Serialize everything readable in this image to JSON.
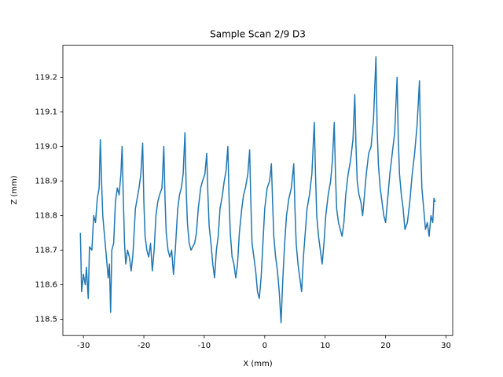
{
  "chart_data": {
    "type": "line",
    "title": "Sample Scan 2/9 D3",
    "x_label": "X (mm)",
    "y_label": "Z (mm)",
    "xlim": [
      -33.4,
      31.1
    ],
    "ylim": [
      118.453,
      119.293
    ],
    "xticks": [
      -30,
      -20,
      -10,
      0,
      10,
      20,
      30
    ],
    "yticks": [
      118.5,
      118.6,
      118.7,
      118.8,
      118.9,
      {
        "value": 119,
        "label": "119.0"
      },
      119.1,
      119.2
    ],
    "grid": false,
    "series": [
      {
        "color": "#1f77b4",
        "x": [
          -30.5,
          -30.3,
          -30.0,
          -29.7,
          -29.5,
          -29.2,
          -29.0,
          -28.6,
          -28.3,
          -28.0,
          -27.7,
          -27.4,
          -27.2,
          -27.0,
          -26.8,
          -26.6,
          -26.4,
          -26.2,
          -25.9,
          -25.7,
          -25.5,
          -25.3,
          -25.0,
          -24.7,
          -24.4,
          -24.1,
          -23.8,
          -23.6,
          -23.4,
          -23.2,
          -23.0,
          -22.7,
          -22.4,
          -22.1,
          -21.8,
          -21.4,
          -21.1,
          -20.8,
          -20.5,
          -20.2,
          -20.0,
          -19.8,
          -19.5,
          -19.2,
          -18.9,
          -18.6,
          -18.3,
          -18.0,
          -17.7,
          -17.4,
          -17.0,
          -16.7,
          -16.5,
          -16.3,
          -16.0,
          -15.7,
          -15.4,
          -15.1,
          -14.8,
          -14.4,
          -14.1,
          -13.8,
          -13.5,
          -13.2,
          -13.0,
          -12.8,
          -12.5,
          -12.2,
          -11.9,
          -11.6,
          -11.3,
          -11.0,
          -10.6,
          -10.3,
          -9.9,
          -9.6,
          -9.4,
          -9.2,
          -8.9,
          -8.6,
          -8.3,
          -8.0,
          -7.7,
          -7.4,
          -7.0,
          -6.7,
          -6.4,
          -6.1,
          -5.9,
          -5.7,
          -5.4,
          -5.1,
          -4.8,
          -4.5,
          -4.2,
          -3.8,
          -3.5,
          -3.2,
          -2.8,
          -2.5,
          -2.3,
          -2.1,
          -1.8,
          -1.5,
          -1.2,
          -0.9,
          -0.6,
          -0.3,
          0.0,
          0.4,
          0.8,
          1.1,
          1.3,
          1.5,
          1.8,
          2.1,
          2.4,
          2.7,
          3.0,
          3.3,
          3.6,
          4.0,
          4.4,
          4.8,
          5.0,
          5.2,
          5.5,
          5.8,
          6.1,
          6.4,
          6.7,
          7.0,
          7.4,
          7.8,
          8.2,
          8.4,
          8.6,
          8.9,
          9.2,
          9.5,
          9.8,
          10.1,
          10.5,
          10.9,
          11.2,
          11.5,
          11.7,
          11.9,
          12.2,
          12.5,
          12.8,
          13.1,
          13.4,
          13.8,
          14.2,
          14.6,
          14.9,
          15.1,
          15.3,
          15.6,
          15.9,
          16.2,
          16.5,
          16.8,
          17.2,
          17.6,
          18.0,
          18.4,
          18.6,
          18.8,
          19.1,
          19.4,
          19.7,
          20.0,
          20.3,
          20.7,
          21.1,
          21.5,
          21.9,
          22.1,
          22.3,
          22.6,
          22.9,
          23.2,
          23.6,
          24.0,
          24.4,
          24.8,
          25.2,
          25.6,
          25.8,
          26.0,
          26.3,
          26.6,
          26.9,
          27.2,
          27.5,
          27.8,
          28.0,
          28.2
        ],
        "values": [
          118.75,
          118.58,
          118.63,
          118.6,
          118.65,
          118.56,
          118.71,
          118.7,
          118.8,
          118.78,
          118.85,
          118.88,
          119.02,
          118.9,
          118.8,
          118.76,
          118.72,
          118.68,
          118.62,
          118.66,
          118.52,
          118.7,
          118.72,
          118.84,
          118.88,
          118.86,
          118.92,
          119.0,
          118.85,
          118.72,
          118.66,
          118.7,
          118.68,
          118.64,
          118.69,
          118.82,
          118.85,
          118.88,
          118.92,
          119.01,
          118.84,
          118.74,
          118.7,
          118.68,
          118.72,
          118.64,
          118.7,
          118.8,
          118.84,
          118.86,
          118.88,
          119.0,
          118.85,
          118.75,
          118.7,
          118.68,
          118.7,
          118.63,
          118.7,
          118.82,
          118.86,
          118.88,
          118.92,
          119.04,
          118.88,
          118.78,
          118.72,
          118.7,
          118.71,
          118.72,
          118.75,
          118.82,
          118.88,
          118.9,
          118.92,
          118.98,
          118.86,
          118.77,
          118.72,
          118.66,
          118.62,
          118.7,
          118.74,
          118.82,
          118.86,
          118.9,
          118.93,
          119.0,
          118.85,
          118.75,
          118.68,
          118.66,
          118.62,
          118.66,
          118.75,
          118.82,
          118.86,
          118.88,
          118.92,
          118.99,
          118.84,
          118.72,
          118.68,
          118.64,
          118.58,
          118.56,
          118.62,
          118.72,
          118.82,
          118.88,
          118.9,
          118.95,
          118.84,
          118.74,
          118.68,
          118.64,
          118.58,
          118.49,
          118.62,
          118.72,
          118.8,
          118.85,
          118.88,
          118.95,
          118.82,
          118.72,
          118.66,
          118.62,
          118.58,
          118.68,
          118.75,
          118.82,
          118.86,
          118.92,
          119.07,
          118.92,
          118.8,
          118.74,
          118.7,
          118.66,
          118.72,
          118.8,
          118.86,
          118.9,
          118.96,
          119.07,
          118.92,
          118.82,
          118.78,
          118.76,
          118.74,
          118.78,
          118.86,
          118.92,
          118.96,
          119.02,
          119.15,
          119.0,
          118.9,
          118.86,
          118.84,
          118.8,
          118.86,
          118.92,
          118.98,
          119.0,
          119.08,
          119.26,
          119.05,
          118.95,
          118.88,
          118.84,
          118.8,
          118.78,
          118.84,
          118.92,
          118.98,
          119.04,
          119.2,
          119.02,
          118.92,
          118.86,
          118.82,
          118.76,
          118.78,
          118.84,
          118.92,
          118.98,
          119.06,
          119.19,
          119.0,
          118.88,
          118.82,
          118.76,
          118.78,
          118.74,
          118.8,
          118.78,
          118.85,
          118.84
        ]
      }
    ]
  }
}
